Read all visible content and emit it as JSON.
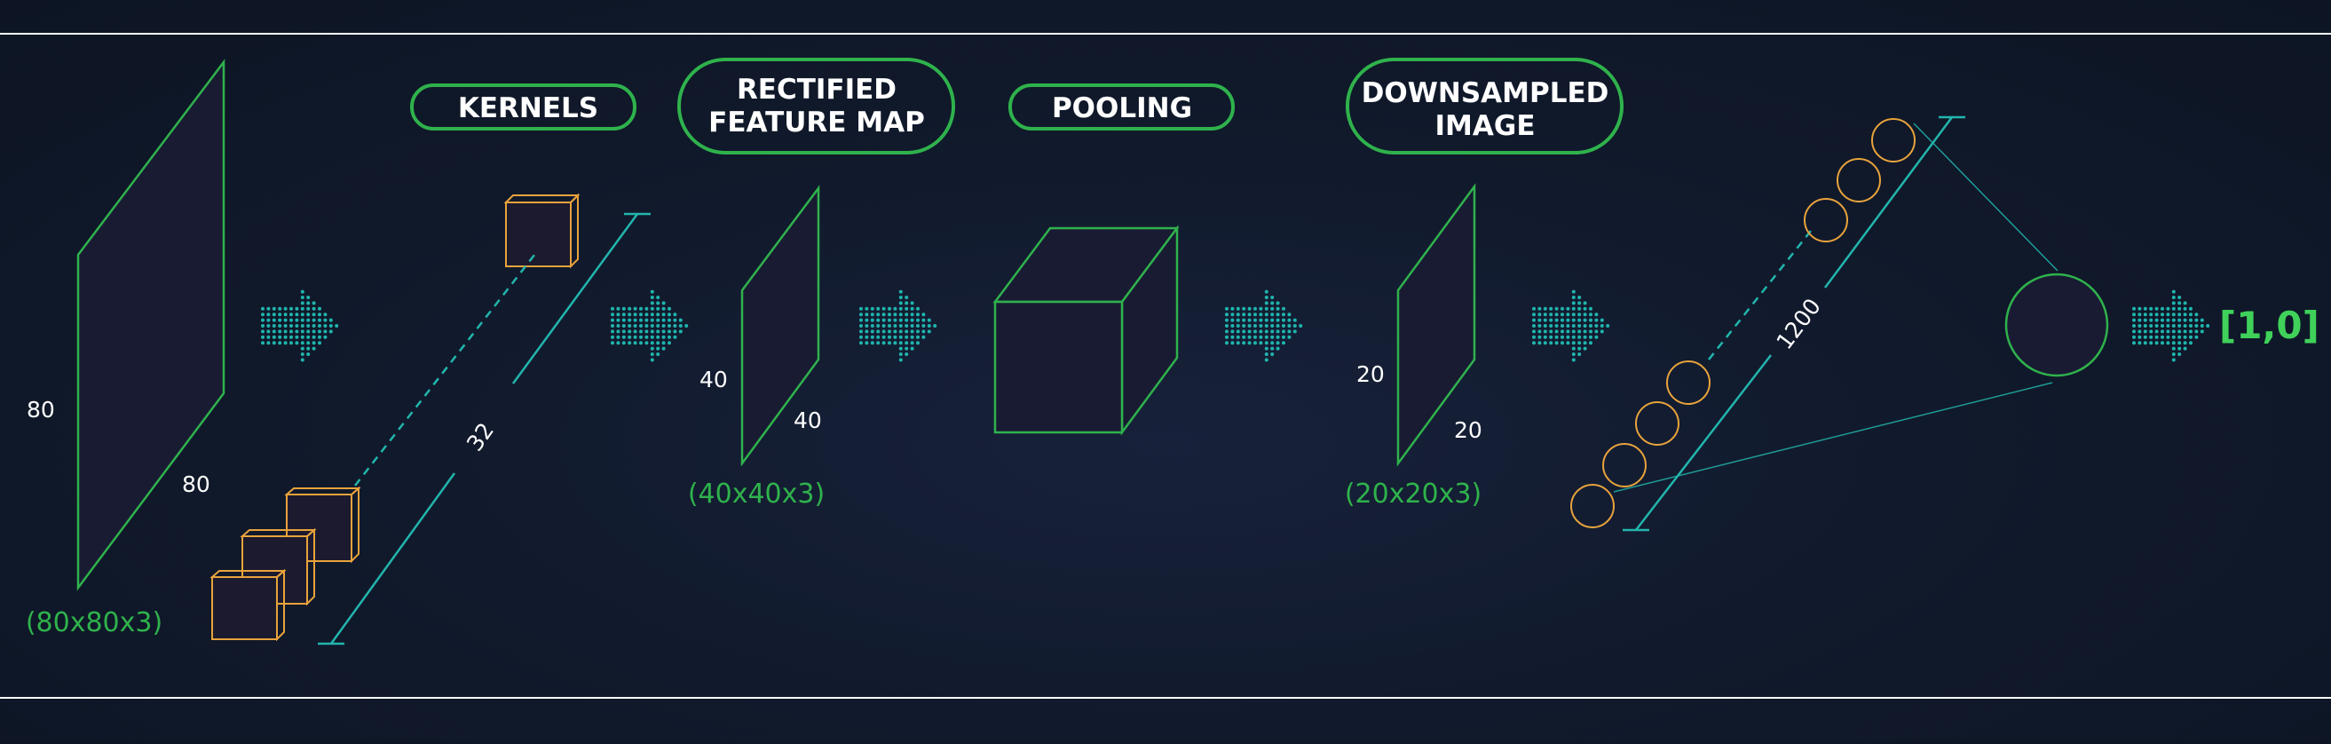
{
  "labels": {
    "kernels": "KERNELS",
    "rectified_line1": "RECTIFIED",
    "rectified_line2": "FEATURE MAP",
    "pooling": "POOLING",
    "downsampled_line1": "DOWNSAMPLED",
    "downsampled_line2": "IMAGE"
  },
  "input": {
    "height": "80",
    "width": "80",
    "shape": "(80x80x3)"
  },
  "kernels": {
    "count": "32"
  },
  "rectified": {
    "height": "40",
    "width": "40",
    "shape": "(40x40x3)"
  },
  "downsampled": {
    "height": "20",
    "width": "20",
    "shape": "(20x20x3)"
  },
  "flatten": {
    "count": "1200"
  },
  "output": {
    "value": "[1,0]"
  },
  "colors": {
    "background": "#111a2c",
    "frame_line": "#ffffff",
    "plane_stroke": "#2fb24c",
    "kernel_stroke": "#e8a33c",
    "arrow_dots": "#1fb5ad",
    "axis_line": "#22b5ad",
    "shape_text": "#2fb24c",
    "output_text": "#3fd15a"
  }
}
